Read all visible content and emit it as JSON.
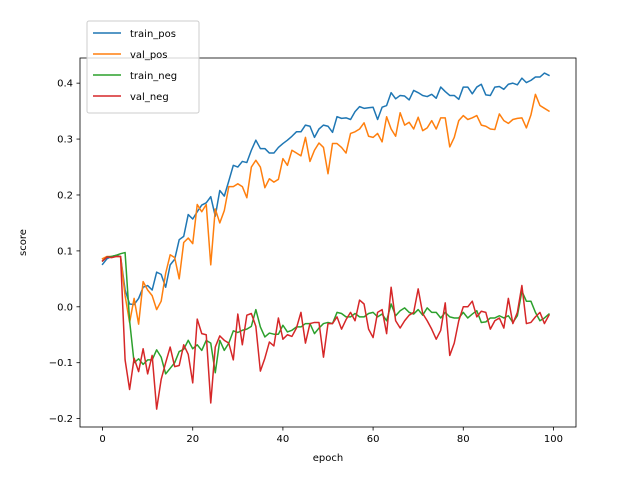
{
  "chart_data": {
    "type": "line",
    "title": "",
    "xlabel": "epoch",
    "ylabel": "score",
    "xlim": [
      -5,
      105
    ],
    "ylim": [
      -0.215,
      0.445
    ],
    "xticks": [
      0,
      20,
      40,
      60,
      80,
      100
    ],
    "yticks": [
      -0.2,
      -0.1,
      0.0,
      0.1,
      0.2,
      0.3,
      0.4
    ],
    "xtick_labels": [
      "0",
      "20",
      "40",
      "60",
      "80",
      "100"
    ],
    "ytick_labels": [
      "−0.2",
      "−0.1",
      "0.0",
      "0.1",
      "0.2",
      "0.3",
      "0.4"
    ],
    "grid": false,
    "legend_position": "top-left",
    "x": [
      0,
      1,
      2,
      3,
      4,
      5,
      6,
      7,
      8,
      9,
      10,
      11,
      12,
      13,
      14,
      15,
      16,
      17,
      18,
      19,
      20,
      21,
      22,
      23,
      24,
      25,
      26,
      27,
      28,
      29,
      30,
      31,
      32,
      33,
      34,
      35,
      36,
      37,
      38,
      39,
      40,
      41,
      42,
      43,
      44,
      45,
      46,
      47,
      48,
      49,
      50,
      51,
      52,
      53,
      54,
      55,
      56,
      57,
      58,
      59,
      60,
      61,
      62,
      63,
      64,
      65,
      66,
      67,
      68,
      69,
      70,
      71,
      72,
      73,
      74,
      75,
      76,
      77,
      78,
      79,
      80,
      81,
      82,
      83,
      84,
      85,
      86,
      87,
      88,
      89,
      90,
      91,
      92,
      93,
      94,
      95,
      96,
      97,
      98,
      99
    ],
    "series": [
      {
        "name": "train_pos",
        "color": "#1f77b4",
        "values": [
          0.076,
          0.086,
          0.09,
          0.092,
          0.09,
          0.03,
          0.005,
          0.004,
          0.015,
          0.035,
          0.038,
          0.03,
          0.062,
          0.058,
          0.035,
          0.075,
          0.085,
          0.12,
          0.126,
          0.165,
          0.157,
          0.17,
          0.182,
          0.186,
          0.197,
          0.162,
          0.208,
          0.198,
          0.225,
          0.253,
          0.25,
          0.26,
          0.258,
          0.28,
          0.298,
          0.283,
          0.283,
          0.275,
          0.275,
          0.285,
          0.292,
          0.298,
          0.305,
          0.313,
          0.313,
          0.325,
          0.323,
          0.303,
          0.318,
          0.325,
          0.323,
          0.312,
          0.34,
          0.337,
          0.338,
          0.335,
          0.349,
          0.358,
          0.355,
          0.356,
          0.357,
          0.335,
          0.357,
          0.36,
          0.383,
          0.372,
          0.378,
          0.377,
          0.37,
          0.387,
          0.383,
          0.378,
          0.376,
          0.38,
          0.373,
          0.393,
          0.385,
          0.378,
          0.378,
          0.371,
          0.393,
          0.393,
          0.381,
          0.393,
          0.398,
          0.379,
          0.378,
          0.393,
          0.394,
          0.389,
          0.398,
          0.4,
          0.397,
          0.409,
          0.401,
          0.405,
          0.411,
          0.411,
          0.418,
          0.414
        ]
      },
      {
        "name": "val_pos",
        "color": "#ff7f0e",
        "values": [
          0.086,
          0.09,
          0.09,
          0.09,
          0.09,
          0.02,
          -0.028,
          0.015,
          -0.031,
          0.045,
          0.03,
          0.02,
          -0.005,
          0.01,
          0.06,
          0.093,
          0.088,
          0.05,
          0.115,
          0.123,
          0.113,
          0.183,
          0.17,
          0.183,
          0.075,
          0.175,
          0.15,
          0.172,
          0.215,
          0.215,
          0.22,
          0.215,
          0.195,
          0.25,
          0.262,
          0.25,
          0.213,
          0.229,
          0.223,
          0.228,
          0.265,
          0.253,
          0.28,
          0.275,
          0.27,
          0.303,
          0.26,
          0.28,
          0.293,
          0.285,
          0.238,
          0.292,
          0.292,
          0.285,
          0.275,
          0.31,
          0.313,
          0.318,
          0.329,
          0.305,
          0.303,
          0.31,
          0.295,
          0.34,
          0.318,
          0.305,
          0.347,
          0.325,
          0.33,
          0.318,
          0.339,
          0.315,
          0.32,
          0.333,
          0.318,
          0.338,
          0.338,
          0.286,
          0.303,
          0.333,
          0.342,
          0.335,
          0.338,
          0.342,
          0.325,
          0.323,
          0.318,
          0.317,
          0.345,
          0.333,
          0.328,
          0.335,
          0.337,
          0.338,
          0.32,
          0.343,
          0.38,
          0.36,
          0.355,
          0.35
        ]
      },
      {
        "name": "train_neg",
        "color": "#2ca02c",
        "values": [
          0.082,
          0.089,
          0.09,
          0.092,
          0.095,
          0.097,
          -0.025,
          -0.1,
          -0.093,
          -0.103,
          -0.095,
          -0.095,
          -0.077,
          -0.09,
          -0.12,
          -0.11,
          -0.1,
          -0.08,
          -0.076,
          -0.06,
          -0.075,
          -0.068,
          -0.078,
          -0.06,
          -0.065,
          -0.118,
          -0.06,
          -0.078,
          -0.065,
          -0.043,
          -0.046,
          -0.042,
          -0.04,
          -0.035,
          -0.005,
          -0.036,
          -0.054,
          -0.047,
          -0.049,
          -0.049,
          -0.033,
          -0.045,
          -0.042,
          -0.036,
          -0.036,
          -0.03,
          -0.03,
          -0.048,
          -0.038,
          -0.03,
          -0.028,
          -0.03,
          -0.01,
          -0.012,
          -0.018,
          -0.018,
          -0.012,
          -0.018,
          -0.018,
          -0.012,
          -0.01,
          -0.018,
          -0.013,
          -0.025,
          0.005,
          -0.016,
          -0.007,
          -0.002,
          -0.01,
          -0.013,
          -0.005,
          -0.015,
          -0.002,
          -0.01,
          -0.01,
          -0.02,
          -0.01,
          -0.018,
          -0.02,
          -0.02,
          -0.01,
          -0.02,
          -0.013,
          -0.007,
          -0.028,
          -0.027,
          -0.02,
          -0.02,
          -0.016,
          -0.02,
          -0.016,
          -0.028,
          -0.016,
          0.028,
          0.01,
          0.01,
          -0.01,
          -0.025,
          -0.02,
          -0.013
        ]
      },
      {
        "name": "val_neg",
        "color": "#d62728",
        "values": [
          0.082,
          0.089,
          0.088,
          0.09,
          0.09,
          -0.095,
          -0.148,
          -0.092,
          -0.116,
          -0.075,
          -0.12,
          -0.087,
          -0.183,
          -0.13,
          -0.1,
          -0.072,
          -0.107,
          -0.105,
          -0.068,
          -0.085,
          -0.136,
          -0.022,
          -0.048,
          -0.05,
          -0.172,
          -0.072,
          -0.052,
          -0.06,
          -0.065,
          -0.095,
          -0.013,
          -0.068,
          -0.015,
          -0.012,
          -0.035,
          -0.115,
          -0.092,
          -0.063,
          -0.07,
          -0.02,
          -0.058,
          -0.05,
          -0.053,
          -0.038,
          -0.01,
          -0.065,
          -0.03,
          -0.028,
          -0.028,
          -0.09,
          -0.03,
          -0.03,
          -0.018,
          -0.04,
          -0.023,
          -0.01,
          -0.025,
          0.012,
          0.005,
          -0.04,
          -0.055,
          -0.01,
          -0.005,
          -0.048,
          0.035,
          -0.025,
          -0.038,
          -0.025,
          -0.015,
          -0.01,
          0.032,
          -0.012,
          -0.025,
          -0.04,
          -0.058,
          -0.042,
          0.007,
          -0.087,
          -0.065,
          -0.025,
          0.0,
          0.0,
          0.01,
          -0.018,
          -0.008,
          -0.01,
          -0.04,
          -0.025,
          -0.02,
          -0.038,
          0.015,
          -0.03,
          -0.01,
          0.038,
          -0.03,
          -0.028,
          -0.018,
          -0.01,
          -0.03,
          -0.015
        ]
      }
    ]
  }
}
